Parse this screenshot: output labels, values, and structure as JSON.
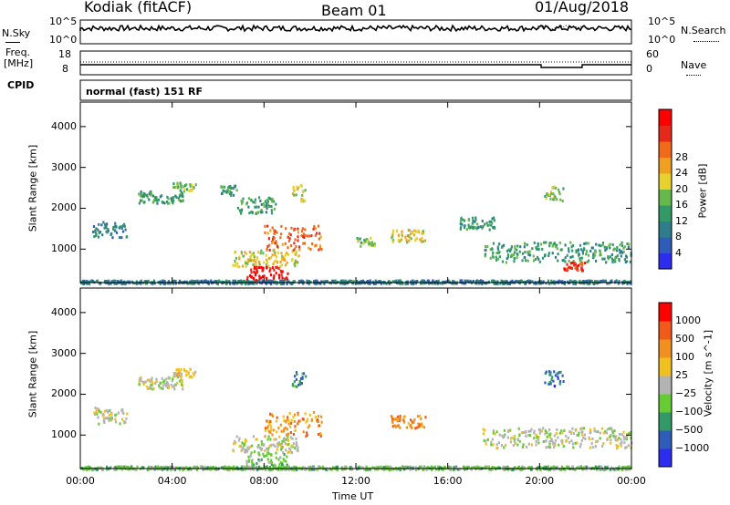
{
  "header": {
    "radar": "Kodiak (fitACF)",
    "beam": "Beam 01",
    "date": "01/Aug/2018"
  },
  "sky_panel": {
    "left_label": "N.Sky",
    "right_label": "N.Search",
    "left_ticks": [
      "10^5",
      "10^0"
    ],
    "right_ticks": [
      "10^5",
      "10^0"
    ]
  },
  "freq_panel": {
    "left_label_1": "Freq.",
    "left_label_2": "[MHz]",
    "right_label": "Nave",
    "left_ticks": [
      "18",
      "8"
    ],
    "right_ticks": [
      "60",
      "0"
    ]
  },
  "cpid": {
    "label": "CPID",
    "value": "normal (fast) 151 RF"
  },
  "chart_data": [
    {
      "type": "heatmap",
      "title": "",
      "xlabel": "",
      "ylabel": "Slant Range [km]",
      "xlim": [
        0,
        24
      ],
      "ylim": [
        180,
        4600
      ],
      "yticks": [
        "1000",
        "2000",
        "3000",
        "4000"
      ],
      "colorbar": {
        "label": "Power [dB]",
        "ticks": [
          "4",
          "8",
          "12",
          "16",
          "20",
          "24",
          "28"
        ],
        "colors": [
          "#2d2df0",
          "#2e5cb8",
          "#2e7d8c",
          "#339966",
          "#66b84d",
          "#e6d12e",
          "#f0a020",
          "#f06a1a",
          "#e62a1a",
          "#ff0000"
        ]
      },
      "regions": [
        {
          "t0": 0.5,
          "t1": 2.0,
          "r0": 1300,
          "r1": 1700,
          "level": 2
        },
        {
          "t0": 2.5,
          "t1": 4.5,
          "r0": 2150,
          "r1": 2450,
          "level": 3
        },
        {
          "t0": 4.0,
          "t1": 5.0,
          "r0": 2450,
          "r1": 2650,
          "level": 4
        },
        {
          "t0": 6.0,
          "t1": 6.8,
          "r0": 2300,
          "r1": 2600,
          "level": 3
        },
        {
          "t0": 6.6,
          "t1": 9.5,
          "r0": 600,
          "r1": 1000,
          "level": 5
        },
        {
          "t0": 7.2,
          "t1": 9.0,
          "r0": 200,
          "r1": 600,
          "level": 9
        },
        {
          "t0": 8.0,
          "t1": 10.5,
          "r0": 1000,
          "r1": 1600,
          "level": 7
        },
        {
          "t0": 6.8,
          "t1": 8.5,
          "r0": 1900,
          "r1": 2300,
          "level": 3
        },
        {
          "t0": 9.2,
          "t1": 9.8,
          "r0": 2200,
          "r1": 2600,
          "level": 5
        },
        {
          "t0": 12.0,
          "t1": 12.8,
          "r0": 1100,
          "r1": 1300,
          "level": 4
        },
        {
          "t0": 13.5,
          "t1": 15.0,
          "r0": 1200,
          "r1": 1500,
          "level": 5
        },
        {
          "t0": 16.5,
          "t1": 18.0,
          "r0": 1500,
          "r1": 1800,
          "level": 3
        },
        {
          "t0": 17.5,
          "t1": 24.0,
          "r0": 700,
          "r1": 1200,
          "level": 3
        },
        {
          "t0": 20.2,
          "t1": 21.0,
          "r0": 2200,
          "r1": 2600,
          "level": 4
        },
        {
          "t0": 21.0,
          "t1": 22.0,
          "r0": 500,
          "r1": 700,
          "level": 8
        },
        {
          "t0": 0.0,
          "t1": 24.0,
          "r0": 180,
          "r1": 260,
          "level": 2
        }
      ]
    },
    {
      "type": "heatmap",
      "title": "",
      "xlabel": "Time UT",
      "ylabel": "Slant Range [km]",
      "xlim": [
        0,
        24
      ],
      "ylim": [
        180,
        4600
      ],
      "xticks": [
        "00:00",
        "04:00",
        "08:00",
        "12:00",
        "16:00",
        "20:00",
        "00:00"
      ],
      "yticks": [
        "1000",
        "2000",
        "3000",
        "4000"
      ],
      "colorbar": {
        "label": "Velocity [m s^-1]",
        "ticks": [
          "1000",
          "500",
          "100",
          "25",
          "−25",
          "−100",
          "−500",
          "−1000"
        ],
        "colors": [
          "#2d2df0",
          "#2e5cb8",
          "#339966",
          "#66cc33",
          "#b3b3b3",
          "#f0c020",
          "#f09020",
          "#f05a1a",
          "#ff0000"
        ]
      },
      "regions": [
        {
          "t0": 0.5,
          "t1": 2.0,
          "r0": 1300,
          "r1": 1700,
          "level": 4
        },
        {
          "t0": 2.5,
          "t1": 4.5,
          "r0": 2150,
          "r1": 2450,
          "level": 4
        },
        {
          "t0": 4.0,
          "t1": 5.0,
          "r0": 2450,
          "r1": 2650,
          "level": 5
        },
        {
          "t0": 6.6,
          "t1": 9.5,
          "r0": 600,
          "r1": 1000,
          "level": 4
        },
        {
          "t0": 7.2,
          "t1": 9.0,
          "r0": 200,
          "r1": 600,
          "level": 3
        },
        {
          "t0": 8.0,
          "t1": 10.5,
          "r0": 1000,
          "r1": 1600,
          "level": 6
        },
        {
          "t0": 9.2,
          "t1": 9.8,
          "r0": 2200,
          "r1": 2600,
          "level": 2
        },
        {
          "t0": 13.5,
          "t1": 15.0,
          "r0": 1200,
          "r1": 1500,
          "level": 6
        },
        {
          "t0": 17.5,
          "t1": 24.0,
          "r0": 700,
          "r1": 1200,
          "level": 4
        },
        {
          "t0": 20.2,
          "t1": 21.0,
          "r0": 2200,
          "r1": 2600,
          "level": 1
        },
        {
          "t0": 0.0,
          "t1": 24.0,
          "r0": 180,
          "r1": 260,
          "level": 3
        }
      ]
    }
  ]
}
